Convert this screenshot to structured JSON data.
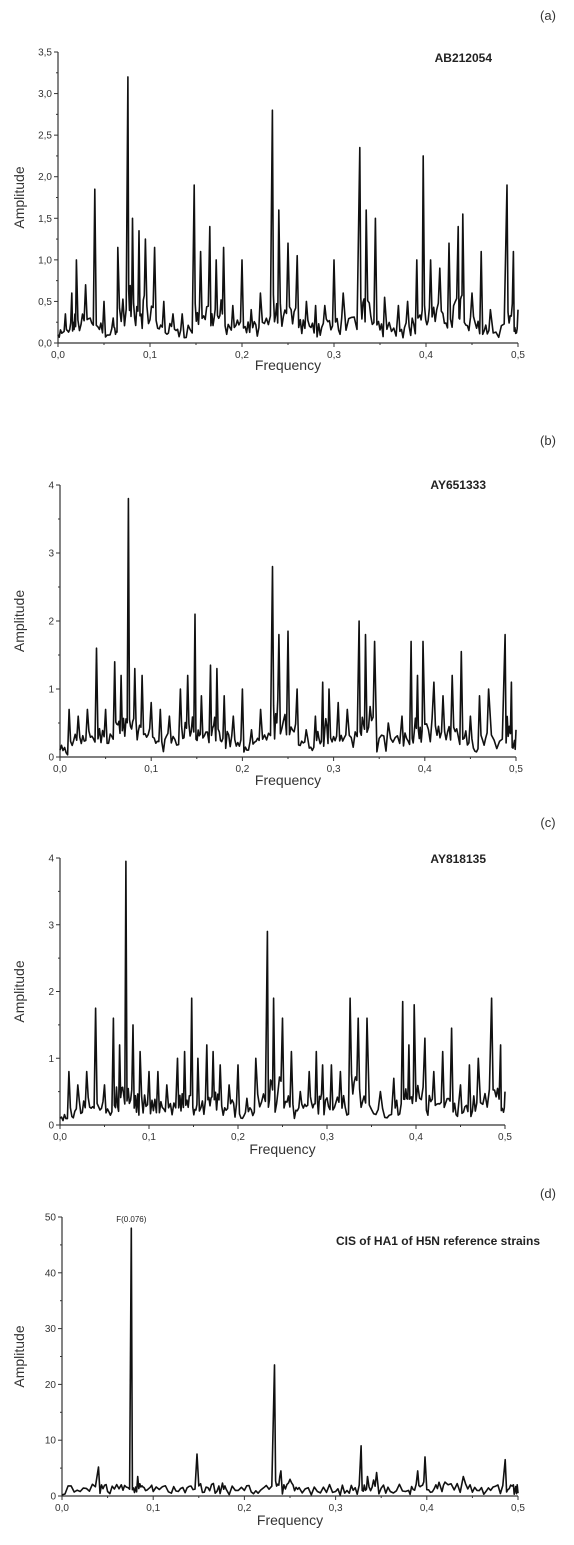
{
  "chart_data": [
    {
      "type": "line",
      "panel_label": "(a)",
      "title": "AB212054",
      "xlabel": "Frequency",
      "ylabel": "Amplitude",
      "xlim": [
        0,
        0.5
      ],
      "ylim": [
        0,
        3.5
      ],
      "xticks": [
        "0,0",
        "0,1",
        "0,2",
        "0,3",
        "0,4",
        "0,5"
      ],
      "yticks": [
        "0,0",
        "0,5",
        "1,0",
        "1,5",
        "2,0",
        "2,5",
        "3,0",
        "3,5"
      ],
      "peaks": [
        [
          0.0,
          0.1
        ],
        [
          0.008,
          0.35
        ],
        [
          0.015,
          0.6
        ],
        [
          0.02,
          1.0
        ],
        [
          0.03,
          0.7
        ],
        [
          0.04,
          1.85
        ],
        [
          0.05,
          0.5
        ],
        [
          0.06,
          0.3
        ],
        [
          0.065,
          1.15
        ],
        [
          0.076,
          3.2
        ],
        [
          0.081,
          1.5
        ],
        [
          0.088,
          1.35
        ],
        [
          0.095,
          1.25
        ],
        [
          0.105,
          1.15
        ],
        [
          0.115,
          0.5
        ],
        [
          0.125,
          0.35
        ],
        [
          0.135,
          0.35
        ],
        [
          0.148,
          1.9
        ],
        [
          0.155,
          1.1
        ],
        [
          0.165,
          1.4
        ],
        [
          0.172,
          1.0
        ],
        [
          0.18,
          1.15
        ],
        [
          0.19,
          0.45
        ],
        [
          0.2,
          1.0
        ],
        [
          0.21,
          0.4
        ],
        [
          0.22,
          0.6
        ],
        [
          0.233,
          2.8
        ],
        [
          0.24,
          1.6
        ],
        [
          0.25,
          1.2
        ],
        [
          0.26,
          1.05
        ],
        [
          0.27,
          0.5
        ],
        [
          0.28,
          0.45
        ],
        [
          0.29,
          0.45
        ],
        [
          0.3,
          1.0
        ],
        [
          0.31,
          0.6
        ],
        [
          0.328,
          2.35
        ],
        [
          0.335,
          1.6
        ],
        [
          0.345,
          1.5
        ],
        [
          0.355,
          0.55
        ],
        [
          0.37,
          0.45
        ],
        [
          0.38,
          0.5
        ],
        [
          0.39,
          1.0
        ],
        [
          0.397,
          2.25
        ],
        [
          0.405,
          1.0
        ],
        [
          0.415,
          0.9
        ],
        [
          0.425,
          1.2
        ],
        [
          0.435,
          1.4
        ],
        [
          0.44,
          1.55
        ],
        [
          0.45,
          0.6
        ],
        [
          0.46,
          1.1
        ],
        [
          0.47,
          0.4
        ],
        [
          0.488,
          1.9
        ],
        [
          0.495,
          1.1
        ],
        [
          0.5,
          0.4
        ]
      ]
    },
    {
      "type": "line",
      "panel_label": "(b)",
      "title": "AY651333",
      "xlabel": "Frequency",
      "ylabel": "Amplitude",
      "xlim": [
        0,
        0.5
      ],
      "ylim": [
        0,
        4
      ],
      "xticks": [
        "0,0",
        "0,1",
        "0,2",
        "0,3",
        "0,4",
        "0,5"
      ],
      "yticks": [
        "0",
        "1",
        "2",
        "3",
        "4"
      ],
      "peaks": [
        [
          0.0,
          0.1
        ],
        [
          0.01,
          0.7
        ],
        [
          0.02,
          0.6
        ],
        [
          0.03,
          0.7
        ],
        [
          0.04,
          1.6
        ],
        [
          0.05,
          0.7
        ],
        [
          0.06,
          1.4
        ],
        [
          0.067,
          1.2
        ],
        [
          0.075,
          3.8
        ],
        [
          0.082,
          1.3
        ],
        [
          0.09,
          1.2
        ],
        [
          0.1,
          0.8
        ],
        [
          0.11,
          0.7
        ],
        [
          0.12,
          0.6
        ],
        [
          0.132,
          1.0
        ],
        [
          0.14,
          1.2
        ],
        [
          0.148,
          2.1
        ],
        [
          0.155,
          0.9
        ],
        [
          0.165,
          1.35
        ],
        [
          0.172,
          1.3
        ],
        [
          0.18,
          0.9
        ],
        [
          0.19,
          0.6
        ],
        [
          0.2,
          1.0
        ],
        [
          0.21,
          0.4
        ],
        [
          0.22,
          0.7
        ],
        [
          0.233,
          2.8
        ],
        [
          0.24,
          1.8
        ],
        [
          0.25,
          1.85
        ],
        [
          0.26,
          1.0
        ],
        [
          0.27,
          0.4
        ],
        [
          0.28,
          0.6
        ],
        [
          0.288,
          1.1
        ],
        [
          0.295,
          1.0
        ],
        [
          0.305,
          0.8
        ],
        [
          0.315,
          0.7
        ],
        [
          0.328,
          2.0
        ],
        [
          0.335,
          1.8
        ],
        [
          0.345,
          1.7
        ],
        [
          0.36,
          0.5
        ],
        [
          0.375,
          0.6
        ],
        [
          0.385,
          1.7
        ],
        [
          0.392,
          1.2
        ],
        [
          0.398,
          1.7
        ],
        [
          0.41,
          1.1
        ],
        [
          0.42,
          0.9
        ],
        [
          0.43,
          1.2
        ],
        [
          0.44,
          1.55
        ],
        [
          0.45,
          0.6
        ],
        [
          0.46,
          0.9
        ],
        [
          0.47,
          1.0
        ],
        [
          0.488,
          1.8
        ],
        [
          0.495,
          1.1
        ],
        [
          0.5,
          0.4
        ]
      ]
    },
    {
      "type": "line",
      "panel_label": "(c)",
      "title": "AY818135",
      "xlabel": "Frequency",
      "ylabel": "Amplitude",
      "xlim": [
        0,
        0.5
      ],
      "ylim": [
        0,
        4
      ],
      "xticks": [
        "0,0",
        "0,1",
        "0,2",
        "0,3",
        "0,4",
        "0,5"
      ],
      "yticks": [
        "0",
        "1",
        "2",
        "3",
        "4"
      ],
      "peaks": [
        [
          0.0,
          0.1
        ],
        [
          0.01,
          0.8
        ],
        [
          0.02,
          0.6
        ],
        [
          0.03,
          0.8
        ],
        [
          0.04,
          1.75
        ],
        [
          0.05,
          0.6
        ],
        [
          0.06,
          1.6
        ],
        [
          0.067,
          1.2
        ],
        [
          0.074,
          3.95
        ],
        [
          0.082,
          1.5
        ],
        [
          0.09,
          1.1
        ],
        [
          0.1,
          0.8
        ],
        [
          0.11,
          0.8
        ],
        [
          0.12,
          0.6
        ],
        [
          0.132,
          1.0
        ],
        [
          0.14,
          1.1
        ],
        [
          0.148,
          1.9
        ],
        [
          0.155,
          1.0
        ],
        [
          0.165,
          1.2
        ],
        [
          0.172,
          1.1
        ],
        [
          0.18,
          0.9
        ],
        [
          0.19,
          0.6
        ],
        [
          0.2,
          0.9
        ],
        [
          0.21,
          0.4
        ],
        [
          0.22,
          1.0
        ],
        [
          0.233,
          2.9
        ],
        [
          0.24,
          1.9
        ],
        [
          0.25,
          1.6
        ],
        [
          0.26,
          1.1
        ],
        [
          0.27,
          0.5
        ],
        [
          0.28,
          0.8
        ],
        [
          0.288,
          1.1
        ],
        [
          0.295,
          0.9
        ],
        [
          0.305,
          0.9
        ],
        [
          0.315,
          0.8
        ],
        [
          0.326,
          1.9
        ],
        [
          0.335,
          1.6
        ],
        [
          0.345,
          1.6
        ],
        [
          0.36,
          0.5
        ],
        [
          0.375,
          0.7
        ],
        [
          0.385,
          1.85
        ],
        [
          0.392,
          1.2
        ],
        [
          0.398,
          1.8
        ],
        [
          0.41,
          1.3
        ],
        [
          0.42,
          0.8
        ],
        [
          0.43,
          1.1
        ],
        [
          0.44,
          1.45
        ],
        [
          0.45,
          0.6
        ],
        [
          0.46,
          0.9
        ],
        [
          0.47,
          1.0
        ],
        [
          0.485,
          1.9
        ],
        [
          0.495,
          1.2
        ],
        [
          0.5,
          0.5
        ]
      ]
    },
    {
      "type": "line",
      "panel_label": "(d)",
      "title": "CIS of HA1 of H5N reference strains",
      "annotation": "F(0.076)",
      "xlabel": "Frequency",
      "ylabel": "Amplitude",
      "xlim": [
        0,
        0.5
      ],
      "ylim": [
        0,
        50
      ],
      "xticks": [
        "0,0",
        "0,1",
        "0,2",
        "0,3",
        "0,4",
        "0,5"
      ],
      "yticks": [
        "0",
        "10",
        "20",
        "30",
        "40",
        "50"
      ],
      "peaks": [
        [
          0.0,
          0.2
        ],
        [
          0.02,
          0.8
        ],
        [
          0.04,
          5.2
        ],
        [
          0.05,
          0.8
        ],
        [
          0.065,
          2.0
        ],
        [
          0.076,
          48
        ],
        [
          0.083,
          3.5
        ],
        [
          0.09,
          1.5
        ],
        [
          0.1,
          0.8
        ],
        [
          0.12,
          0.5
        ],
        [
          0.135,
          0.6
        ],
        [
          0.148,
          7.5
        ],
        [
          0.16,
          1.5
        ],
        [
          0.172,
          1.8
        ],
        [
          0.18,
          1.2
        ],
        [
          0.2,
          1.0
        ],
        [
          0.215,
          0.5
        ],
        [
          0.233,
          23.5
        ],
        [
          0.24,
          4.5
        ],
        [
          0.25,
          3.0
        ],
        [
          0.26,
          1.5
        ],
        [
          0.28,
          0.8
        ],
        [
          0.3,
          0.8
        ],
        [
          0.315,
          0.5
        ],
        [
          0.328,
          9.0
        ],
        [
          0.335,
          3.5
        ],
        [
          0.345,
          4.2
        ],
        [
          0.36,
          0.8
        ],
        [
          0.38,
          1.0
        ],
        [
          0.39,
          4.5
        ],
        [
          0.398,
          7.0
        ],
        [
          0.41,
          2.0
        ],
        [
          0.42,
          2.5
        ],
        [
          0.44,
          3.5
        ],
        [
          0.455,
          1.0
        ],
        [
          0.47,
          1.0
        ],
        [
          0.486,
          6.5
        ],
        [
          0.495,
          2.0
        ],
        [
          0.5,
          0.5
        ]
      ]
    }
  ]
}
